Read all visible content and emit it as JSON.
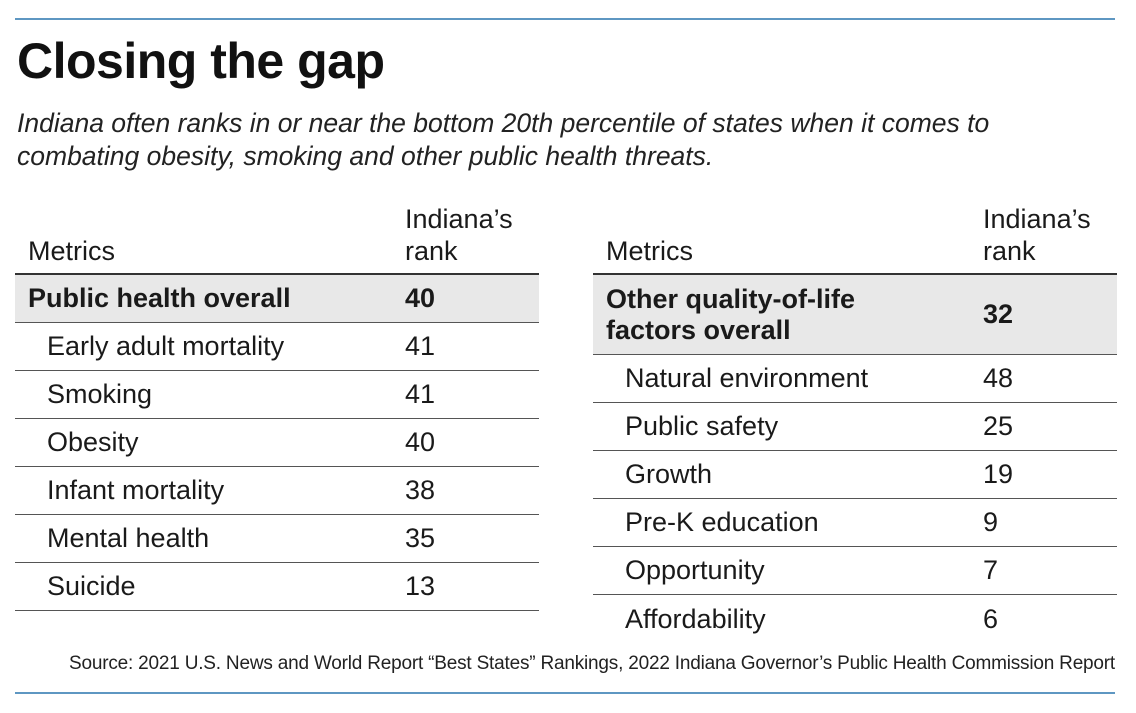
{
  "title": "Closing the gap",
  "subtitle": "Indiana often ranks in or near the bottom 20th percentile of states when it comes to combating obesity, smoking and other public health threats.",
  "left_table": {
    "header_metric": "Metrics",
    "header_rank_line1": "Indiana’s",
    "header_rank_line2": "rank",
    "total_label": "Public health overall",
    "total_rank": "40",
    "rows": [
      {
        "metric": "Early adult mortality",
        "rank": "41"
      },
      {
        "metric": "Smoking",
        "rank": "41"
      },
      {
        "metric": "Obesity",
        "rank": "40"
      },
      {
        "metric": "Infant mortality",
        "rank": "38"
      },
      {
        "metric": "Mental health",
        "rank": "35"
      },
      {
        "metric": "Suicide",
        "rank": "13"
      }
    ]
  },
  "right_table": {
    "header_metric": "Metrics",
    "header_rank_line1": "Indiana’s",
    "header_rank_line2": "rank",
    "total_label_line1": "Other quality-of-life",
    "total_label_line2": "factors overall",
    "total_rank": "32",
    "rows": [
      {
        "metric": "Natural environment",
        "rank": "48"
      },
      {
        "metric": "Public safety",
        "rank": "25"
      },
      {
        "metric": "Growth",
        "rank": "19"
      },
      {
        "metric": "Pre-K education",
        "rank": "9"
      },
      {
        "metric": "Opportunity",
        "rank": "7"
      },
      {
        "metric": "Affordability",
        "rank": "6"
      }
    ]
  },
  "source": "Source: 2021 U.S. News and World Report “Best States” Rankings, 2022 Indiana Governor’s Public Health Commission Report",
  "colors": {
    "accent_rule": "#5e97c2",
    "total_row_bg": "#e8e8e8"
  }
}
